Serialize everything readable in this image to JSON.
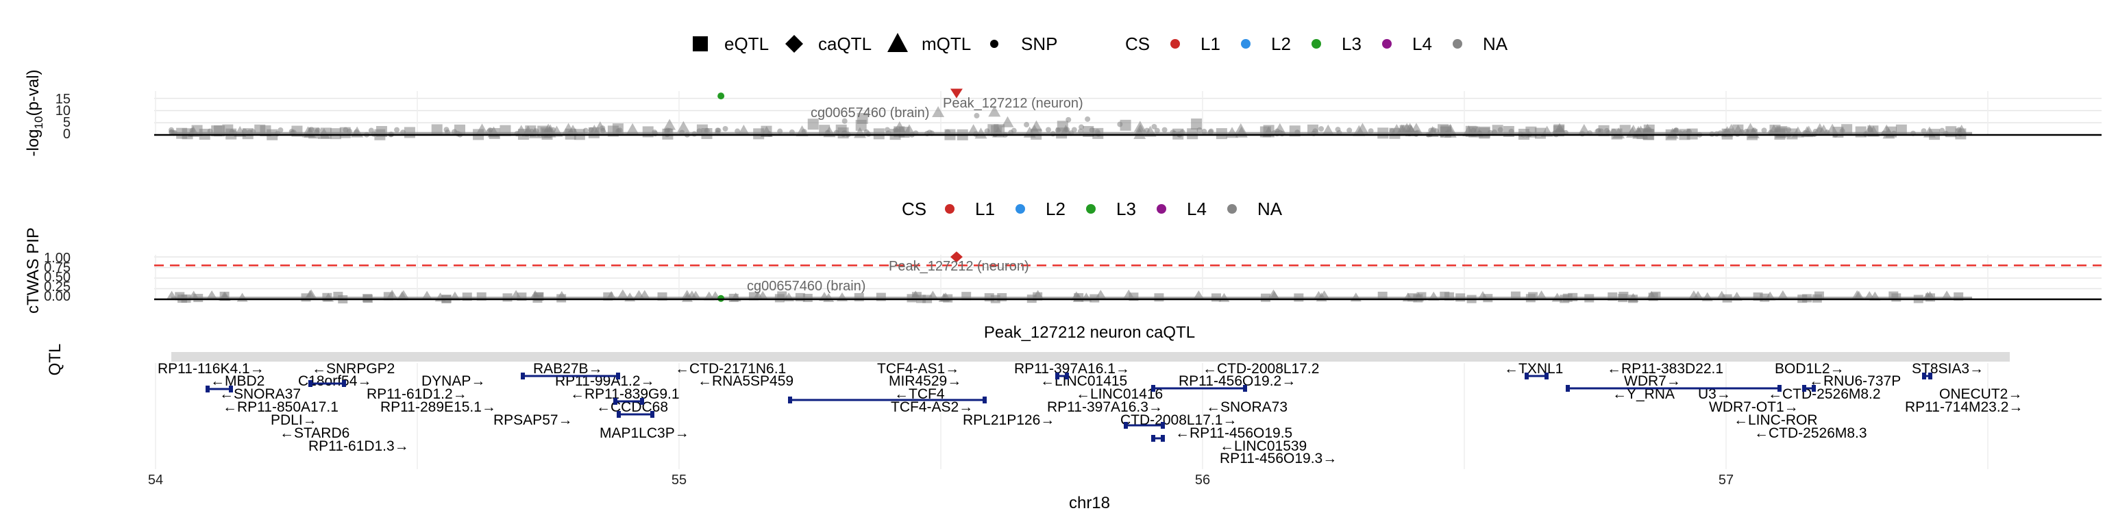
{
  "legend_top": {
    "shape_items": [
      {
        "label": "eQTL",
        "icon": "square"
      },
      {
        "label": "caQTL",
        "icon": "diamond"
      },
      {
        "label": "mQTL",
        "icon": "triangle"
      },
      {
        "label": "SNP",
        "icon": "dot"
      }
    ],
    "cs_title": "CS",
    "cs_items": [
      {
        "label": "L1",
        "color": "#CC2A27"
      },
      {
        "label": "L2",
        "color": "#2E8FE6"
      },
      {
        "label": "L3",
        "color": "#239B23"
      },
      {
        "label": "L4",
        "color": "#8E1689"
      },
      {
        "label": "NA",
        "color": "#858585"
      }
    ]
  },
  "legend_mid": {
    "cs_title": "CS",
    "cs_items": [
      {
        "label": "L1",
        "color": "#CC2A27"
      },
      {
        "label": "L2",
        "color": "#2E8FE6"
      },
      {
        "label": "L3",
        "color": "#239B23"
      },
      {
        "label": "L4",
        "color": "#8E1689"
      },
      {
        "label": "NA",
        "color": "#858585"
      }
    ]
  },
  "chart_data": [
    {
      "type": "scatter",
      "ylabel": "-log10(p-val)",
      "ylim": [
        0,
        18
      ],
      "yticks": [
        "0",
        "5",
        "10",
        "15"
      ],
      "grid": true,
      "annotations": [
        {
          "text": "Peak_127212 (neuron)",
          "x": 55.52,
          "y": 15.5
        },
        {
          "text": "cg00657460 (brain)",
          "x": 55.24,
          "y": 10.5
        }
      ],
      "highlight_points": [
        {
          "x": 55.08,
          "y": 16,
          "cs": "L3"
        },
        {
          "x": 55.53,
          "y": 17,
          "cs": "L1"
        }
      ]
    },
    {
      "type": "scatter",
      "ylabel": "cTWAS PIP",
      "ylim": [
        0,
        1.05
      ],
      "yticks": [
        "0.00",
        "0.25",
        "0.50",
        "0.75",
        "1.00"
      ],
      "threshold": 0.8,
      "grid": true,
      "annotations": [
        {
          "text": "Peak_127212 (neuron)",
          "x": 55.52,
          "y": 0.55
        },
        {
          "text": "cg00657460 (brain)",
          "x": 55.24,
          "y": 0.05
        }
      ],
      "highlight_points": [
        {
          "x": 55.53,
          "y": 1.0,
          "cs": "L1"
        },
        {
          "x": 55.08,
          "y": 0.02,
          "cs": "L3"
        }
      ]
    },
    {
      "type": "gene_track",
      "title": "Peak_127212 neuron caQTL",
      "ylabel": "QTL",
      "xlabel": "chr18",
      "xlim": [
        53.97,
        57.5
      ],
      "xticks": [
        "54",
        "55",
        "56",
        "57"
      ],
      "genes": [
        "RP11-116K4.1→",
        "←MBD2",
        "←SNORA37",
        "←RP11-850A17.1",
        "PDLI→",
        "←STARD6",
        "RP11-61D1.3→",
        "←SNRPGP2",
        "C18orf54→",
        "DYNAP→",
        "RP11-61D1.2→",
        "RP11-289E15.1→",
        "RAB27B→",
        "RP11-99A1.2→",
        "←RP11-839G9.1",
        "←CCDC68",
        "RPSAP57→",
        "MAP1LC3P→",
        "←CTD-2171N6.1",
        "←RNA5SP459",
        "TCF4-AS1→",
        "MIR4529→",
        "←TCF4",
        "TCF4-AS2→",
        "RPL21P126→",
        "RP11-397A16.1→",
        "←LINC01415",
        "←LINC01416",
        "RP11-397A16.3→",
        "CTD-2008L17.1→",
        "←CTD-2008L17.2",
        "RP11-456O19.2→",
        "←SNORA73",
        "←RP11-456O19.5",
        "←LINC01539",
        "RP11-456O19.3→",
        "←TXNL1",
        "←RP11-383D22.1",
        "WDR7→",
        "←Y_RNA",
        "U3→",
        "WDR7-OT1→",
        "←LINC-ROR",
        "←CTD-2526M8.3",
        "BOD1L2→",
        "←RNU6-737P",
        "←CTD-2526M8.2",
        "ST8SIA3→",
        "ONECUT2→",
        "RP11-714M23.2→"
      ]
    }
  ]
}
